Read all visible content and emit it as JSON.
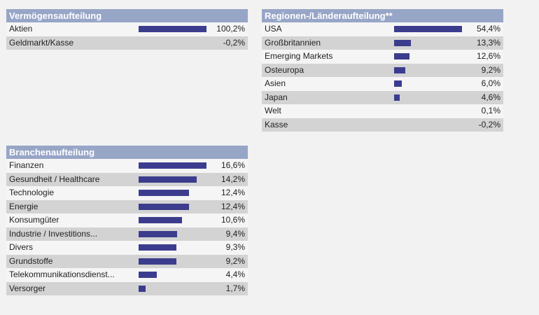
{
  "colors": {
    "header_bg": "#97a5c7",
    "bar": "#3c3c8e",
    "row_alt": "#d3d3d3",
    "page_bg": "#f2f2f2"
  },
  "vermoegen": {
    "title": "Vermögensaufteilung",
    "rows": [
      {
        "label": "Aktien",
        "value": "100,2%",
        "share": 100.2
      },
      {
        "label": "Geldmarkt/Kasse",
        "value": "-0,2%",
        "share": -0.2
      }
    ]
  },
  "regionen": {
    "title": "Regionen-/Länderaufteilung**",
    "rows": [
      {
        "label": "USA",
        "value": "54,4%",
        "share": 54.4
      },
      {
        "label": "Großbritannien",
        "value": "13,3%",
        "share": 13.3
      },
      {
        "label": "Emerging Markets",
        "value": "12,6%",
        "share": 12.6
      },
      {
        "label": "Osteuropa",
        "value": "9,2%",
        "share": 9.2
      },
      {
        "label": "Asien",
        "value": "6,0%",
        "share": 6.0
      },
      {
        "label": "Japan",
        "value": "4,6%",
        "share": 4.6
      },
      {
        "label": "Welt",
        "value": "0,1%",
        "share": 0.1
      },
      {
        "label": "Kasse",
        "value": "-0,2%",
        "share": -0.2
      }
    ]
  },
  "branchen": {
    "title": "Branchenaufteilung",
    "rows": [
      {
        "label": "Finanzen",
        "value": "16,6%",
        "share": 16.6
      },
      {
        "label": "Gesundheit / Healthcare",
        "value": "14,2%",
        "share": 14.2
      },
      {
        "label": "Technologie",
        "value": "12,4%",
        "share": 12.4
      },
      {
        "label": "Energie",
        "value": "12,4%",
        "share": 12.4
      },
      {
        "label": "Konsumgüter",
        "value": "10,6%",
        "share": 10.6
      },
      {
        "label": "Industrie / Investitions...",
        "value": "9,4%",
        "share": 9.4
      },
      {
        "label": "Divers",
        "value": "9,3%",
        "share": 9.3
      },
      {
        "label": "Grundstoffe",
        "value": "9,2%",
        "share": 9.2
      },
      {
        "label": "Telekommunikationsdienst...",
        "value": "4,4%",
        "share": 4.4
      },
      {
        "label": "Versorger",
        "value": "1,7%",
        "share": 1.7
      }
    ]
  }
}
